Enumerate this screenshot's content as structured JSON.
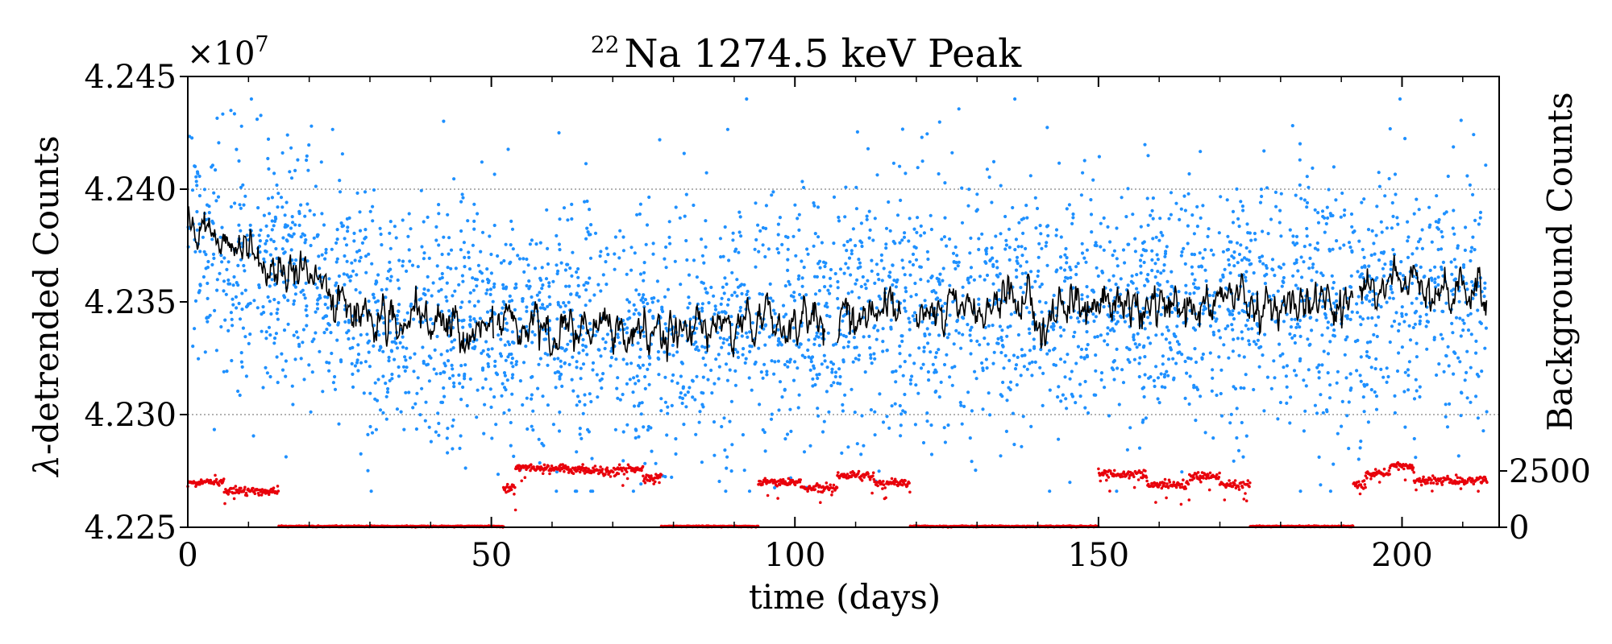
{
  "chart_data": {
    "type": "scatter",
    "title": "22 Na 1274.5 keV Peak",
    "title_isotope_mass": "22",
    "title_text": "Na 1274.5 keV Peak",
    "xlabel": "time (days)",
    "ylabel_symbol": "λ",
    "ylabel_text": "-detrended Counts",
    "y2label": "Background Counts",
    "offset_text_base": "×10",
    "offset_text_exp": "7",
    "xlim": [
      0,
      216
    ],
    "ylim": [
      4.225,
      4.245
    ],
    "xticks": [
      0,
      50,
      100,
      150,
      200
    ],
    "xtick_labels": [
      "0",
      "50",
      "100",
      "150",
      "200"
    ],
    "yticks": [
      4.225,
      4.23,
      4.235,
      4.24,
      4.245
    ],
    "ytick_labels": [
      "4.225",
      "4.230",
      "4.235",
      "4.240",
      "4.245"
    ],
    "y2lim": [
      0,
      20000
    ],
    "y2ticks": [
      0,
      2500
    ],
    "y2tick_labels": [
      "0",
      "2500"
    ],
    "grid_lines_y": [
      4.23,
      4.24
    ],
    "series": [
      {
        "name": "detrended counts",
        "kind": "scatter",
        "color": "#1e90ff",
        "x_range": [
          0,
          214
        ],
        "n_points": 3600,
        "trend": [
          [
            0,
            4.2375
          ],
          [
            10,
            4.2365
          ],
          [
            20,
            4.236
          ],
          [
            30,
            4.2345
          ],
          [
            40,
            4.234
          ],
          [
            50,
            4.2342
          ],
          [
            60,
            4.2338
          ],
          [
            75,
            4.2337
          ],
          [
            90,
            4.234
          ],
          [
            110,
            4.2345
          ],
          [
            130,
            4.2347
          ],
          [
            150,
            4.2348
          ],
          [
            170,
            4.235
          ],
          [
            190,
            4.235
          ],
          [
            200,
            4.2355
          ],
          [
            214,
            4.2352
          ]
        ],
        "spread": 0.0028
      },
      {
        "name": "running mean",
        "kind": "line",
        "color": "#000000",
        "segments": [
          [
            0,
            50.5
          ],
          [
            51,
            105
          ],
          [
            107,
            117.5
          ],
          [
            120,
            192
          ],
          [
            193,
            214
          ]
        ],
        "trend": [
          [
            0,
            4.2384
          ],
          [
            4,
            4.2385
          ],
          [
            10,
            4.237
          ],
          [
            15,
            4.2365
          ],
          [
            20,
            4.236
          ],
          [
            25,
            4.235
          ],
          [
            30,
            4.2345
          ],
          [
            35,
            4.2338
          ],
          [
            50,
            4.234
          ],
          [
            60,
            4.2337
          ],
          [
            75,
            4.2335
          ],
          [
            90,
            4.234
          ],
          [
            110,
            4.2345
          ],
          [
            130,
            4.2347
          ],
          [
            150,
            4.2348
          ],
          [
            170,
            4.235
          ],
          [
            190,
            4.235
          ],
          [
            195,
            4.2357
          ],
          [
            205,
            4.2358
          ],
          [
            214,
            4.2352
          ]
        ]
      },
      {
        "name": "background counts",
        "kind": "scatter",
        "axis": "right",
        "color": "#e8000b",
        "levels": [
          {
            "x": [
              0,
              6
            ],
            "y": 2000
          },
          {
            "x": [
              6,
              15
            ],
            "y": 1600
          },
          {
            "x": [
              15,
              52
            ],
            "y": 40
          },
          {
            "x": [
              52,
              54
            ],
            "y": 1700
          },
          {
            "x": [
              54,
              60
            ],
            "y": 2650
          },
          {
            "x": [
              60,
              66
            ],
            "y": 2600
          },
          {
            "x": [
              66,
              71
            ],
            "y": 2450
          },
          {
            "x": [
              71,
              75
            ],
            "y": 2600
          },
          {
            "x": [
              75,
              77
            ],
            "y": 2150
          },
          {
            "x": [
              77,
              78
            ],
            "y": 2200
          },
          {
            "x": [
              78,
              94
            ],
            "y": 40
          },
          {
            "x": [
              94,
              101
            ],
            "y": 2000
          },
          {
            "x": [
              101,
              107
            ],
            "y": 1750
          },
          {
            "x": [
              107,
              113
            ],
            "y": 2300
          },
          {
            "x": [
              113,
              119
            ],
            "y": 1950
          },
          {
            "x": [
              119,
              150
            ],
            "y": 40
          },
          {
            "x": [
              150,
              158
            ],
            "y": 2350
          },
          {
            "x": [
              158,
              165
            ],
            "y": 1900
          },
          {
            "x": [
              165,
              170
            ],
            "y": 2250
          },
          {
            "x": [
              170,
              175
            ],
            "y": 1900
          },
          {
            "x": [
              175,
              192
            ],
            "y": 40
          },
          {
            "x": [
              192,
              194
            ],
            "y": 1850
          },
          {
            "x": [
              194,
              198
            ],
            "y": 2400
          },
          {
            "x": [
              198,
              202
            ],
            "y": 2700
          },
          {
            "x": [
              202,
              214
            ],
            "y": 2100
          }
        ]
      }
    ]
  }
}
